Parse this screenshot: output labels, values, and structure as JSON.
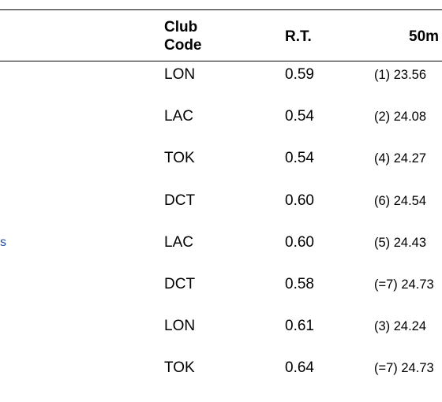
{
  "table": {
    "headers": {
      "club_code": [
        "Club",
        "Code"
      ],
      "rt": "R.T.",
      "split_50m": "50m"
    },
    "rows": [
      {
        "club": "LON",
        "rt": "0.59",
        "split": "(1) 23.56",
        "edge": ""
      },
      {
        "club": "LAC",
        "rt": "0.54",
        "split": "(2) 24.08",
        "edge": ""
      },
      {
        "club": "TOK",
        "rt": "0.54",
        "split": "(4) 24.27",
        "edge": ""
      },
      {
        "club": "DCT",
        "rt": "0.60",
        "split": "(6) 24.54",
        "edge": ""
      },
      {
        "club": "LAC",
        "rt": "0.60",
        "split": "(5) 24.43",
        "edge": "s"
      },
      {
        "club": "DCT",
        "rt": "0.58",
        "split": "(=7) 24.73",
        "edge": ""
      },
      {
        "club": "LON",
        "rt": "0.61",
        "split": "(3) 24.24",
        "edge": ""
      },
      {
        "club": "TOK",
        "rt": "0.64",
        "split": "(=7) 24.73",
        "edge": ""
      }
    ]
  }
}
